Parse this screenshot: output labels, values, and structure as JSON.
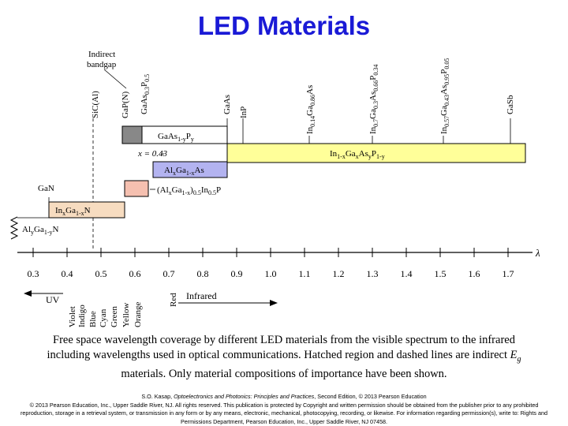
{
  "title": "LED Materials",
  "colors": {
    "title": "#1a1ad6",
    "gaas_yellow": "#ffff99",
    "gaasp_gray": "#888888",
    "algaas_blue": "#b3b3f0",
    "algainp_pink": "#f5c0b0",
    "ingan_tan": "#f7dcc0"
  },
  "labels": {
    "indirect_bandgap": [
      "Indirect",
      "bandgap"
    ],
    "lambda": "λ",
    "x_eq": "x = 0.43",
    "gan": "GaN"
  },
  "materials_top": [
    {
      "text": "SiC(Al)"
    },
    {
      "text": "GaP(N)"
    },
    {
      "text": "GaAs0.3P0.5"
    },
    {
      "text": "GaAs"
    },
    {
      "text": "InP"
    },
    {
      "text": "In0.14Ga0.86As"
    },
    {
      "text": "In0.7Ga0.3As0.66P0.34"
    },
    {
      "text": "In0.57Ga0.43As0.95P0.05"
    },
    {
      "text": "GaSb"
    }
  ],
  "bars": {
    "gaasp": "GaAs1-yPy",
    "ingaasp": "In1-xGaxAsyP1-y",
    "algaas": "AlxGa1-xAs",
    "algainp": "(AlxGa1-x)0.5In0.5P",
    "ingan": "InxGa1-xN",
    "alyganx": "AlyGa1-yN"
  },
  "axis": {
    "ticks": [
      "0.3",
      "0.4",
      "0.5",
      "0.6",
      "0.7",
      "0.8",
      "0.9",
      "1.0",
      "1.1",
      "1.2",
      "1.3",
      "1.4",
      "1.5",
      "1.6",
      "1.7"
    ]
  },
  "spectrum": {
    "uv": "UV",
    "colors": [
      "Violet",
      "Indigo",
      "Blue",
      "Cyan",
      "Green",
      "Yellow",
      "Orange",
      "Red"
    ],
    "infrared": "Infrared"
  },
  "caption": {
    "text_before": "Free space wavelength coverage by different LED materials from the visible spectrum to the infrared including wavelengths used in optical communications. Hatched region and dashed lines are indirect ",
    "eg": "Eg",
    "text_after": " materials. Only material compositions of importance have been shown."
  },
  "credit": {
    "author": "S.O. Kasap, ",
    "book": "Optoelectronics and Photonics: Principles and Practices",
    "line1_rest": ", Second Edition, © 2013 Pearson Education",
    "line2": "© 2013 Pearson Education, Inc., Upper Saddle River, NJ. All rights reserved. This publication is protected by Copyright and written permission should be obtained from the publisher prior to any prohibited reproduction, storage in a retrieval system, or transmission in any form or by any means, electronic, mechanical, photocopying, recording, or likewise. For information regarding permission(s), write to: Rights and Permissions Department, Pearson Education, Inc., Upper Saddle River, NJ 07458."
  }
}
